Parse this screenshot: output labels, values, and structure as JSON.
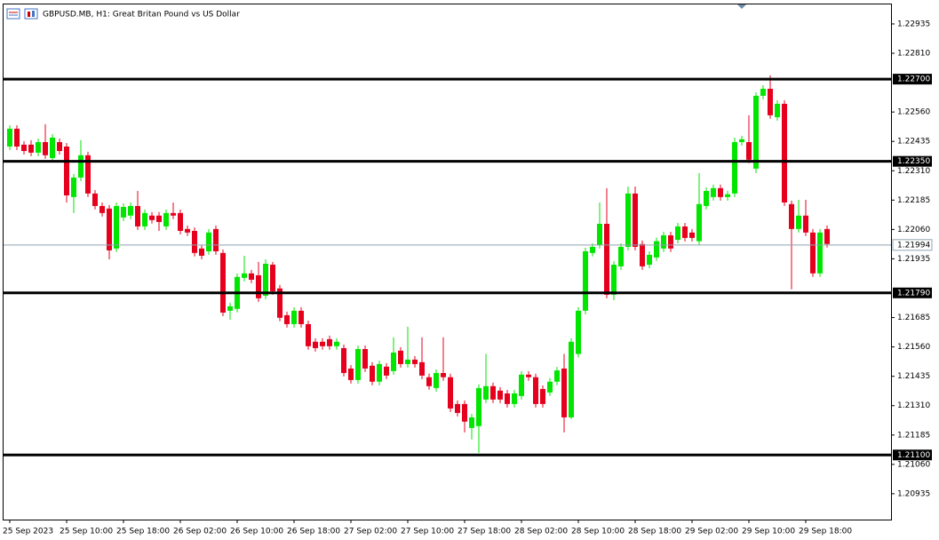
{
  "chart_data": {
    "type": "candlestick",
    "title": "GBPUSD.MB, H1:  Great Britan Pound vs US Dollar",
    "categories": [
      "25 Sep 2023",
      null,
      null,
      null,
      null,
      null,
      null,
      null,
      "25 Sep 10:00",
      null,
      null,
      null,
      null,
      null,
      null,
      null,
      "25 Sep 18:00",
      null,
      null,
      null,
      null,
      null,
      null,
      null,
      "26 Sep 02:00",
      null,
      null,
      null,
      null,
      null,
      null,
      null,
      "26 Sep 10:00",
      null,
      null,
      null,
      null,
      null,
      null,
      null,
      "26 Sep 18:00",
      null,
      null,
      null,
      null,
      null,
      null,
      null,
      "27 Sep 02:00",
      null,
      null,
      null,
      null,
      null,
      null,
      null,
      "27 Sep 10:00",
      null,
      null,
      null,
      null,
      null,
      null,
      null,
      "27 Sep 18:00",
      null,
      null,
      null,
      null,
      null,
      null,
      null,
      "28 Sep 02:00",
      null,
      null,
      null,
      null,
      null,
      null,
      null,
      "28 Sep 10:00",
      null,
      null,
      null,
      null,
      null,
      null,
      null,
      "28 Sep 18:00",
      null,
      null,
      null,
      null,
      null,
      null,
      null,
      "29 Sep 02:00",
      null,
      null,
      null,
      null,
      null,
      null,
      null,
      "29 Sep 10:00",
      null,
      null,
      null,
      null,
      null,
      null,
      null,
      "29 Sep 18:00",
      null,
      null,
      null
    ],
    "open": [
      1.22413,
      1.22489,
      1.22421,
      1.22421,
      1.22387,
      1.22432,
      1.22364,
      1.22432,
      1.22413,
      1.22198,
      1.22281,
      1.22376,
      1.22213,
      1.2216,
      1.22149,
      1.21979,
      1.22111,
      1.22119,
      1.2216,
      1.22073,
      1.22119,
      1.22119,
      1.22073,
      1.2213,
      1.2213,
      1.22062,
      1.22054,
      1.21979,
      1.21967,
      1.22062,
      1.2196,
      1.21714,
      1.21722,
      1.21854,
      1.21873,
      1.21865,
      1.21778,
      1.2191,
      1.21809,
      1.21695,
      1.21657,
      1.21714,
      1.21657,
      1.21582,
      1.21582,
      1.21593,
      1.21563,
      1.21555,
      1.21468,
      1.21419,
      1.21551,
      1.2148,
      1.21412,
      1.21476,
      1.21457,
      1.21544,
      1.21487,
      1.21506,
      1.21495,
      1.21431,
      1.21385,
      1.21449,
      1.21431,
      1.21317,
      1.21317,
      1.21215,
      1.21223,
      1.21336,
      1.21393,
      1.21374,
      1.21362,
      1.21317,
      1.21351,
      1.21442,
      1.21431,
      1.21381,
      1.21366,
      1.21412,
      1.21468,
      1.2126,
      1.2153,
      1.21714,
      1.2196,
      1.21994,
      1.22084,
      1.21782,
      1.21903,
      1.21986,
      1.22213,
      1.21998,
      1.2191,
      1.21941,
      1.21979,
      1.22035,
      1.22016,
      1.22073,
      1.22047,
      1.2201,
      1.2216,
      1.22198,
      1.22236,
      1.22198,
      1.22213,
      1.22432,
      1.22432,
      1.22319,
      1.22629,
      1.22659,
      1.22538,
      1.22595,
      1.22168,
      1.22062,
      1.22119,
      1.22047,
      1.21873,
      1.22062
    ],
    "high": [
      1.22504,
      1.22504,
      1.22436,
      1.2244,
      1.22447,
      1.22508,
      1.22466,
      1.22447,
      1.22428,
      1.22296,
      1.2244,
      1.22391,
      1.22228,
      1.22175,
      1.22164,
      1.22175,
      1.22171,
      1.22175,
      1.22224,
      1.22145,
      1.22134,
      1.22134,
      1.22145,
      1.22175,
      1.22145,
      1.22077,
      1.22069,
      1.21994,
      1.22062,
      1.22077,
      1.21975,
      1.21748,
      1.21873,
      1.21948,
      1.21888,
      1.21922,
      1.21933,
      1.21922,
      1.21824,
      1.2171,
      1.21729,
      1.21729,
      1.21672,
      1.21597,
      1.21597,
      1.21608,
      1.21597,
      1.2157,
      1.21483,
      1.21566,
      1.21566,
      1.21495,
      1.21502,
      1.21491,
      1.21601,
      1.21559,
      1.21646,
      1.21521,
      1.21601,
      1.21446,
      1.21464,
      1.21601,
      1.21446,
      1.21332,
      1.21332,
      1.21275,
      1.214,
      1.2153,
      1.21408,
      1.21389,
      1.21377,
      1.21377,
      1.21457,
      1.21457,
      1.21446,
      1.21396,
      1.21427,
      1.21475,
      1.2153,
      1.21597,
      1.21729,
      1.21982,
      1.22001,
      1.22175,
      1.22236,
      1.21925,
      1.22001,
      1.22243,
      1.22243,
      1.22013,
      1.21967,
      1.22025,
      1.2205,
      1.2205,
      1.22088,
      1.22088,
      1.22062,
      1.223,
      1.22239,
      1.22251,
      1.22251,
      1.22225,
      1.22451,
      1.22459,
      1.22546,
      1.22644,
      1.22674,
      1.22716,
      1.2261,
      1.2261,
      1.22183,
      1.22186,
      1.22186,
      1.22062,
      1.22062,
      1.22077
    ],
    "low": [
      1.22398,
      1.22398,
      1.22379,
      1.22372,
      1.22372,
      1.22361,
      1.22349,
      1.22379,
      1.22175,
      1.2213,
      1.22266,
      1.22198,
      1.22145,
      1.22115,
      1.21933,
      1.21964,
      1.22096,
      1.22104,
      1.22058,
      1.22058,
      1.22085,
      1.22054,
      1.22058,
      1.22104,
      1.22039,
      1.22032,
      1.21945,
      1.21933,
      1.21952,
      1.21952,
      1.21691,
      1.21676,
      1.21707,
      1.21839,
      1.21831,
      1.21752,
      1.21763,
      1.21782,
      1.21669,
      1.21642,
      1.21642,
      1.21642,
      1.21548,
      1.2154,
      1.21548,
      1.21548,
      1.21548,
      1.21434,
      1.21404,
      1.21404,
      1.21453,
      1.21397,
      1.21397,
      1.21423,
      1.21442,
      1.21472,
      1.21472,
      1.21472,
      1.21423,
      1.21378,
      1.2137,
      1.21416,
      1.21283,
      1.21264,
      1.21196,
      1.21166,
      1.21109,
      1.21321,
      1.21321,
      1.21321,
      1.21302,
      1.21302,
      1.21336,
      1.21416,
      1.21302,
      1.21302,
      1.21351,
      1.21397,
      1.21196,
      1.21253,
      1.21515,
      1.21699,
      1.21945,
      1.21979,
      1.21767,
      1.21759,
      1.21888,
      1.21971,
      1.21971,
      1.21888,
      1.21895,
      1.21926,
      1.21964,
      1.21964,
      1.22001,
      1.22009,
      1.22009,
      1.21995,
      1.22145,
      1.22183,
      1.22183,
      1.22183,
      1.22198,
      1.22417,
      1.22342,
      1.223,
      1.22614,
      1.22531,
      1.22523,
      1.2216,
      1.21805,
      1.22047,
      1.22032,
      1.21858,
      1.21858,
      1.21983
    ],
    "close": [
      1.22489,
      1.22413,
      1.22394,
      1.22387,
      1.22432,
      1.22376,
      1.22451,
      1.22394,
      1.22205,
      1.22281,
      1.22376,
      1.22213,
      1.2216,
      1.2213,
      1.21971,
      1.2216,
      1.22156,
      1.2216,
      1.22073,
      1.2213,
      1.221,
      1.22092,
      1.2213,
      1.22119,
      1.22054,
      1.22047,
      1.2196,
      1.21948,
      1.22047,
      1.21967,
      1.21706,
      1.21733,
      1.21858,
      1.21873,
      1.21846,
      1.21767,
      1.21914,
      1.21797,
      1.21684,
      1.21657,
      1.21714,
      1.21657,
      1.21563,
      1.21555,
      1.21563,
      1.21563,
      1.21582,
      1.21449,
      1.21419,
      1.21551,
      1.21468,
      1.21412,
      1.21487,
      1.21438,
      1.21536,
      1.21487,
      1.21506,
      1.21487,
      1.21438,
      1.21393,
      1.21449,
      1.21431,
      1.21298,
      1.21279,
      1.21242,
      1.2126,
      1.21385,
      1.21393,
      1.21336,
      1.21336,
      1.21317,
      1.21362,
      1.21442,
      1.21431,
      1.21317,
      1.21317,
      1.21412,
      1.2146,
      1.2126,
      1.21582,
      1.21714,
      1.21967,
      1.21986,
      1.22084,
      1.21782,
      1.2191,
      1.21986,
      1.22213,
      1.21986,
      1.21903,
      1.21952,
      1.2201,
      1.22035,
      1.21979,
      1.22073,
      1.22024,
      1.22024,
      1.22168,
      1.22224,
      1.22236,
      1.22198,
      1.2221,
      1.22432,
      1.22444,
      1.22357,
      1.22629,
      1.22659,
      1.22546,
      1.22595,
      1.22175,
      1.22062,
      1.22119,
      1.22047,
      1.21873,
      1.22047,
      1.21998
    ],
    "bull_color": "#00e600",
    "bear_color": "#e6001e",
    "ylim": [
      1.20825,
      1.23018
    ],
    "yticks": [
      {
        "value": 1.22935,
        "label": "1.22935"
      },
      {
        "value": 1.2281,
        "label": "1.22810"
      },
      {
        "value": 1.2256,
        "label": "1.22560"
      },
      {
        "value": 1.22435,
        "label": "1.22435"
      },
      {
        "value": 1.2231,
        "label": "1.22310"
      },
      {
        "value": 1.22185,
        "label": "1.22185"
      },
      {
        "value": 1.2206,
        "label": "1.22060"
      },
      {
        "value": 1.21935,
        "label": "1.21935"
      },
      {
        "value": 1.21685,
        "label": "1.21685"
      },
      {
        "value": 1.2156,
        "label": "1.21560"
      },
      {
        "value": 1.21435,
        "label": "1.21435"
      },
      {
        "value": 1.2131,
        "label": "1.21310"
      },
      {
        "value": 1.21185,
        "label": "1.21185"
      },
      {
        "value": 1.2106,
        "label": "1.21060"
      },
      {
        "value": 1.20935,
        "label": "1.20935"
      }
    ],
    "levels": [
      {
        "value": 1.227,
        "label": "1.22700"
      },
      {
        "value": 1.2235,
        "label": "1.22350"
      },
      {
        "value": 1.2179,
        "label": "1.21790"
      },
      {
        "value": 1.211,
        "label": "1.21100"
      }
    ],
    "current_price": {
      "value": 1.21994,
      "label": "1.21994"
    }
  }
}
